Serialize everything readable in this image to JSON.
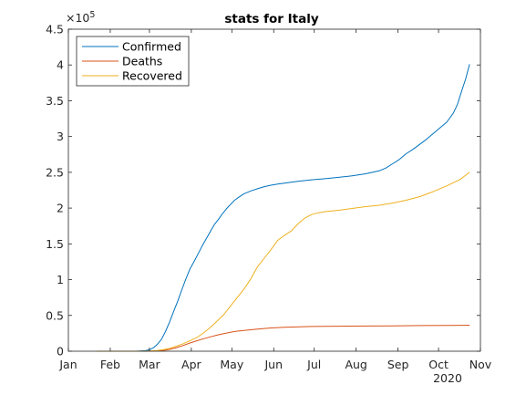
{
  "chart_data": {
    "type": "line",
    "title": "stats for Italy",
    "xlabel": "",
    "ylabel": "",
    "x_axis": {
      "range_days": [
        0,
        305
      ],
      "tick_days": [
        0,
        31,
        60,
        91,
        121,
        152,
        182,
        213,
        244,
        274,
        305
      ],
      "tick_labels": [
        "Jan",
        "Feb",
        "Mar",
        "Apr",
        "May",
        "Jun",
        "Jul",
        "Aug",
        "Sep",
        "Oct",
        "Nov"
      ],
      "year_label": "2020",
      "day_zero": "2020-01-01"
    },
    "y_axis": {
      "range": [
        0,
        450000
      ],
      "ticks": [
        0,
        50000,
        100000,
        150000,
        200000,
        250000,
        300000,
        350000,
        400000,
        450000
      ],
      "tick_labels": [
        "0",
        "0.5",
        "1",
        "1.5",
        "2",
        "2.5",
        "3",
        "3.5",
        "4",
        "4.5"
      ],
      "exponent_label": "×10",
      "exponent_power": "5"
    },
    "legend_position": "top-left",
    "grid": false,
    "series": [
      {
        "name": "Confirmed",
        "color": "#0072BD",
        "x": [
          21,
          40,
          50,
          53,
          57,
          60,
          63,
          66,
          69,
          72,
          75,
          78,
          81,
          84,
          87,
          90,
          93,
          96,
          99,
          102,
          105,
          108,
          111,
          114,
          117,
          120,
          123,
          126,
          130,
          135,
          140,
          145,
          150,
          155,
          160,
          170,
          180,
          190,
          200,
          210,
          220,
          225,
          230,
          235,
          240,
          245,
          250,
          255,
          260,
          265,
          270,
          275,
          280,
          285,
          288,
          291,
          294,
          297
        ],
        "y": [
          0,
          0,
          3,
          200,
          800,
          2000,
          5000,
          10000,
          17000,
          28000,
          41000,
          56000,
          70000,
          86000,
          101000,
          115000,
          125000,
          136000,
          147000,
          157000,
          167000,
          177000,
          184000,
          192000,
          199000,
          205000,
          211000,
          215000,
          220000,
          224000,
          227000,
          230000,
          232000,
          233500,
          235000,
          237500,
          239500,
          241000,
          243000,
          245000,
          248000,
          250000,
          252000,
          256000,
          262000,
          268000,
          276000,
          282000,
          289000,
          296000,
          304000,
          312000,
          320000,
          333000,
          345000,
          363000,
          380000,
          401000
        ]
      },
      {
        "name": "Deaths",
        "color": "#D95319",
        "x": [
          21,
          50,
          55,
          60,
          65,
          70,
          75,
          80,
          85,
          90,
          95,
          100,
          105,
          110,
          115,
          120,
          125,
          130,
          140,
          150,
          160,
          180,
          200,
          220,
          240,
          260,
          280,
          297
        ],
        "y": [
          0,
          0,
          10,
          100,
          300,
          1000,
          2500,
          5000,
          8000,
          11500,
          14500,
          17500,
          20000,
          22500,
          24500,
          26500,
          28000,
          29000,
          31000,
          32500,
          33500,
          34500,
          34900,
          35200,
          35500,
          35800,
          36000,
          36300
        ]
      },
      {
        "name": "Recovered",
        "color": "#EDB120",
        "x": [
          21,
          50,
          55,
          60,
          65,
          70,
          75,
          80,
          85,
          90,
          95,
          100,
          105,
          110,
          115,
          120,
          125,
          130,
          135,
          140,
          145,
          150,
          155,
          160,
          165,
          170,
          175,
          180,
          185,
          190,
          200,
          210,
          220,
          230,
          240,
          250,
          260,
          270,
          280,
          290,
          297
        ],
        "y": [
          0,
          0,
          50,
          200,
          800,
          2000,
          4000,
          7000,
          10500,
          14500,
          19000,
          25500,
          33000,
          42000,
          51000,
          63000,
          75000,
          87000,
          101000,
          118000,
          130000,
          142000,
          155000,
          162000,
          168000,
          178000,
          186000,
          191000,
          193500,
          195000,
          197000,
          199500,
          202000,
          204000,
          207000,
          211000,
          216000,
          223000,
          231000,
          240000,
          250000
        ]
      }
    ]
  }
}
